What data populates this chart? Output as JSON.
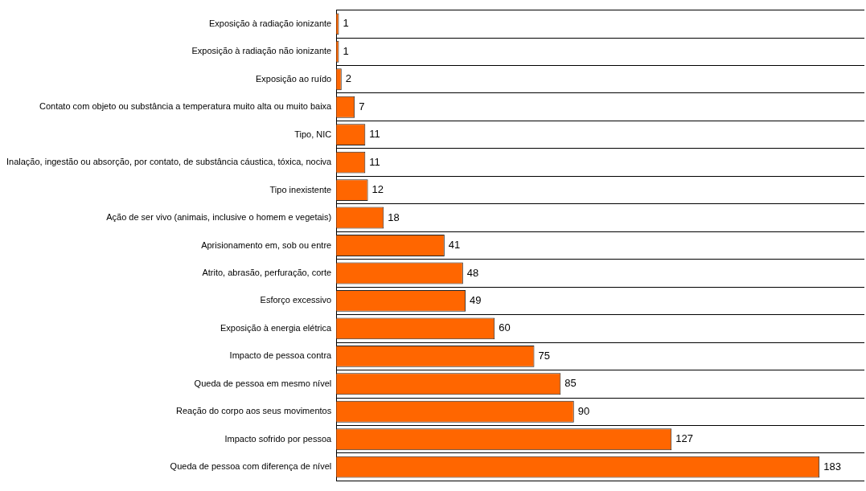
{
  "chart_data": {
    "type": "bar",
    "orientation": "horizontal",
    "categories": [
      "Exposição à radiação ionizante",
      "Exposição à radiação não ionizante",
      "Exposição ao ruído",
      "Contato com objeto ou substância a temperatura muito alta ou muito baixa",
      "Tipo, NIC",
      "Inalação, ingestão ou absorção, por contato, de substância cáustica, tóxica, nociva",
      "Tipo inexistente",
      "Ação de ser vivo (animais, inclusive o homem e vegetais)",
      "Aprisionamento em, sob ou entre",
      "Atrito, abrasão, perfuração, corte",
      "Esforço excessivo",
      "Exposição à energia elétrica",
      "Impacto de pessoa contra",
      "Queda de pessoa em mesmo nível",
      "Reação do corpo aos seus movimentos",
      "Impacto sofrido por pessoa",
      "Queda de pessoa com diferença de nível"
    ],
    "values": [
      1,
      1,
      2,
      7,
      11,
      11,
      12,
      18,
      41,
      48,
      49,
      60,
      75,
      85,
      90,
      127,
      183
    ],
    "color": "#ff6600",
    "data_labels": true,
    "grid": "y",
    "legend": false
  }
}
